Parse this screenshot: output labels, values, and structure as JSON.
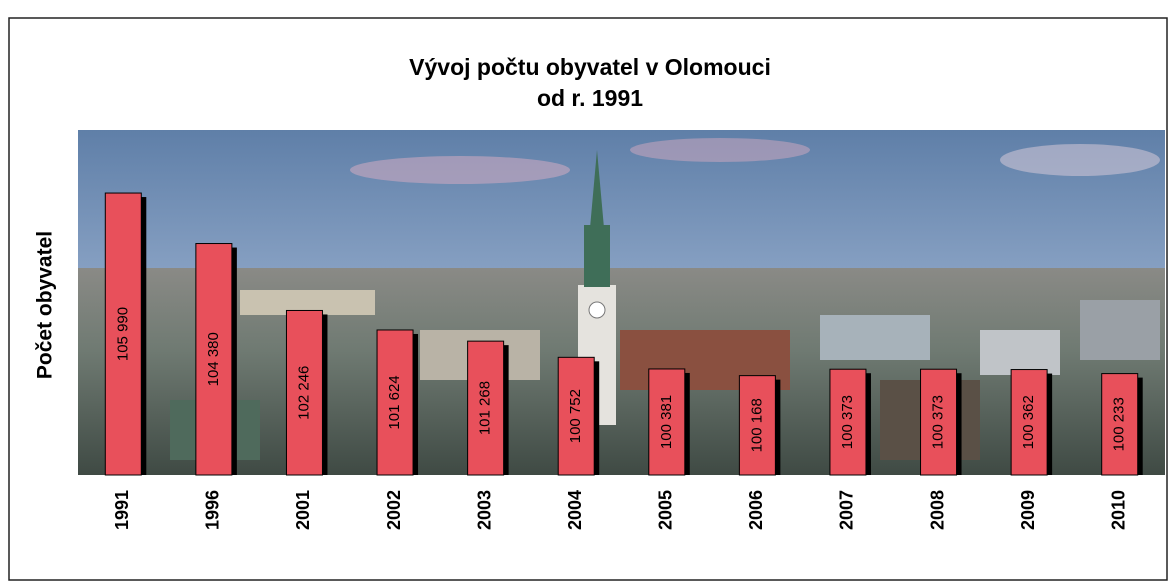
{
  "chart_data": {
    "type": "bar",
    "title": "Vývoj počtu obyvatel v Olomouci",
    "subtitle": "od r. 1991",
    "y_label": "Počet obyvatel",
    "categories": [
      "1991",
      "1996",
      "2001",
      "2002",
      "2003",
      "2004",
      "2005",
      "2006",
      "2007",
      "2008",
      "2009",
      "2010"
    ],
    "values": [
      105990,
      104380,
      102246,
      101624,
      101268,
      100752,
      100381,
      100168,
      100373,
      100373,
      100362,
      100233
    ],
    "value_labels": [
      "105 990",
      "104 380",
      "102 246",
      "101 624",
      "101 268",
      "100 752",
      "100 381",
      "100 168",
      "100 373",
      "100 373",
      "100 362",
      "100 233"
    ],
    "color": "#e8505b",
    "ylim": [
      97000,
      108000
    ]
  }
}
